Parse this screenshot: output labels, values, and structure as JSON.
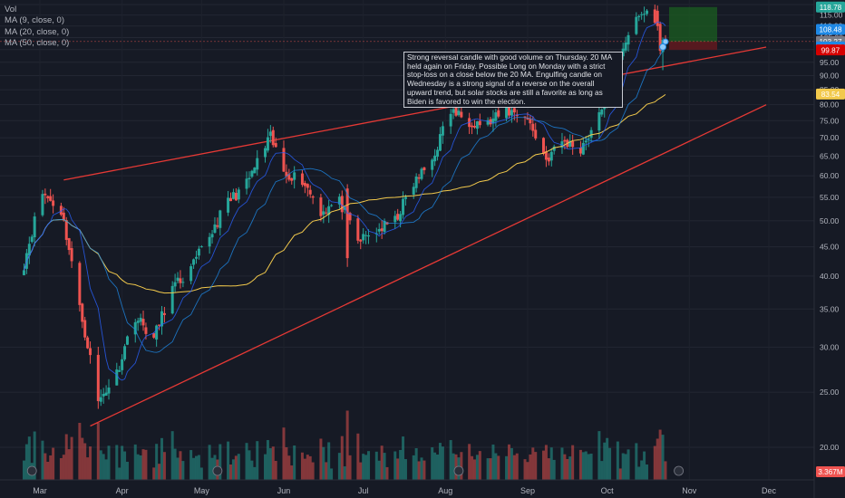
{
  "legend": {
    "vol": "Vol",
    "ma9": "MA (9, close, 0)",
    "ma20": "MA (20, close, 0)",
    "ma50": "MA (50, close, 0)"
  },
  "note": "Strong reversal candle with good volume on Thursday. 20 MA held again on Friday. Possible Long on Monday with a strict stop-loss on a close below the 20 MA. Engulfing candle on Wednesday is a strong signal of a reverse on the overall upward trend, but solar stocks are still a favorite as long as Biden is favored to win the election.",
  "colors": {
    "background": "#161a25",
    "up": "#26a69a",
    "down": "#ef5350",
    "ma9": "#2962ff",
    "ma20": "#1e88e5",
    "ma50": "#f2c94c",
    "channel": "#e53935",
    "target_zone": "#1b5e20",
    "stop_zone": "#5d1a1f"
  },
  "chart_data": {
    "type": "candlestick",
    "y_axis": {
      "unit": "USD",
      "ticks": [
        "120.00",
        "115.00",
        "110.00",
        "105.00",
        "100.00",
        "95.00",
        "90.00",
        "85.00",
        "80.00",
        "75.00",
        "70.00",
        "65.00",
        "60.00",
        "55.00",
        "50.00",
        "45.00",
        "40.00",
        "35.00",
        "30.00",
        "25.00",
        "20.00"
      ],
      "range": [
        17,
        122
      ]
    },
    "x_axis": {
      "months": [
        "Mar",
        "Apr",
        "May",
        "Jun",
        "Jul",
        "Aug",
        "Sep",
        "Oct",
        "Nov",
        "Dec"
      ]
    },
    "price_labels": [
      {
        "value": "118.78",
        "color": "#26a69a",
        "role": "target"
      },
      {
        "value": "108.48",
        "color": "#1e88e5",
        "role": "ma9"
      },
      {
        "value": "103.33",
        "color": "#ef5350",
        "role": "last close"
      },
      {
        "value": "103.27",
        "color": "#787b86",
        "role": "entry"
      },
      {
        "value": "101.07",
        "color": "#1e88e5",
        "role": "ma20"
      },
      {
        "value": "99.87",
        "color": "#d50000",
        "role": "stop"
      },
      {
        "value": "83.54",
        "color": "#f2c94c",
        "role": "ma50"
      },
      {
        "value": "3.367M",
        "color": "#ef5350",
        "role": "volume"
      }
    ],
    "series": [
      {
        "name": "MA (9, close, 0)"
      },
      {
        "name": "MA (20, close, 0)"
      },
      {
        "name": "MA (50, close, 0)"
      }
    ],
    "anchors": [
      {
        "date": "2020-02-24",
        "close": 42
      },
      {
        "date": "2020-03-02",
        "close": 56
      },
      {
        "date": "2020-03-09",
        "close": 52
      },
      {
        "date": "2020-03-16",
        "close": 35
      },
      {
        "date": "2020-03-23",
        "close": 24
      },
      {
        "date": "2020-03-30",
        "close": 27
      },
      {
        "date": "2020-04-06",
        "close": 34
      },
      {
        "date": "2020-04-13",
        "close": 31
      },
      {
        "date": "2020-04-20",
        "close": 38
      },
      {
        "date": "2020-04-27",
        "close": 41
      },
      {
        "date": "2020-05-04",
        "close": 47
      },
      {
        "date": "2020-05-11",
        "close": 54
      },
      {
        "date": "2020-05-18",
        "close": 58
      },
      {
        "date": "2020-05-27",
        "close": 70
      },
      {
        "date": "2020-06-01",
        "close": 61
      },
      {
        "date": "2020-06-08",
        "close": 59
      },
      {
        "date": "2020-06-15",
        "close": 52
      },
      {
        "date": "2020-06-22",
        "close": 54
      },
      {
        "date": "2020-06-29",
        "close": 46
      },
      {
        "date": "2020-07-06",
        "close": 48
      },
      {
        "date": "2020-07-13",
        "close": 50
      },
      {
        "date": "2020-07-20",
        "close": 58
      },
      {
        "date": "2020-07-27",
        "close": 64
      },
      {
        "date": "2020-08-03",
        "close": 78
      },
      {
        "date": "2020-08-10",
        "close": 75
      },
      {
        "date": "2020-08-17",
        "close": 74
      },
      {
        "date": "2020-08-24",
        "close": 78
      },
      {
        "date": "2020-08-31",
        "close": 77
      },
      {
        "date": "2020-09-08",
        "close": 64
      },
      {
        "date": "2020-09-14",
        "close": 69
      },
      {
        "date": "2020-09-21",
        "close": 67
      },
      {
        "date": "2020-09-28",
        "close": 76
      },
      {
        "date": "2020-10-05",
        "close": 96
      },
      {
        "date": "2020-10-09",
        "close": 107
      },
      {
        "date": "2020-10-14",
        "close": 115
      },
      {
        "date": "2020-10-16",
        "close": 117
      },
      {
        "date": "2020-10-20",
        "close": 110
      },
      {
        "date": "2020-10-21",
        "close": 99
      },
      {
        "date": "2020-10-22",
        "close": 103
      },
      {
        "date": "2020-10-23",
        "close": 103.33
      }
    ]
  }
}
